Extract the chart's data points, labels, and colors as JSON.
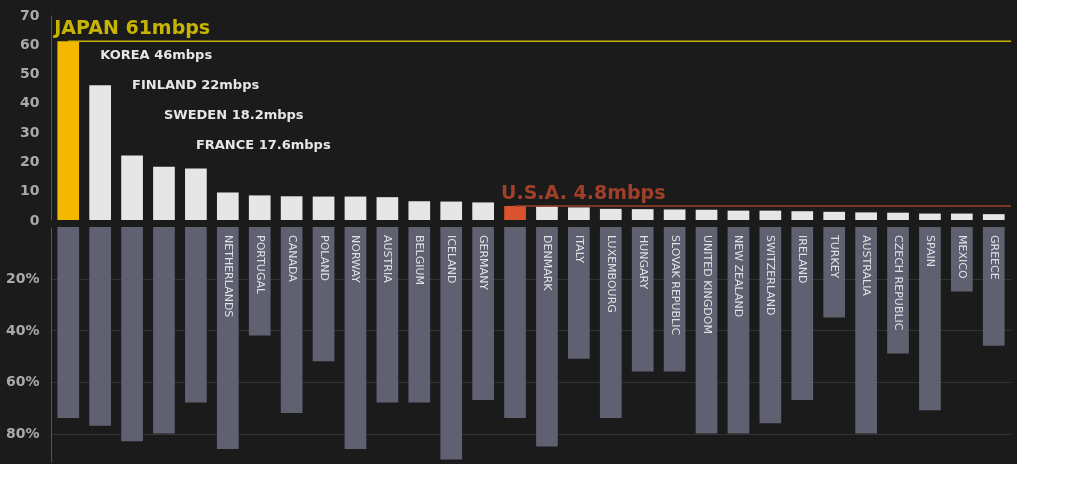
{
  "chart_data": [
    {
      "type": "bar",
      "values": [
        61,
        46,
        22,
        18.2,
        17.6,
        9.4,
        8.4,
        8.1,
        8,
        8,
        7.8,
        6.4,
        6.3,
        6,
        4.8,
        4.6,
        4.3,
        3.8,
        3.7,
        3.6,
        3.5,
        3.2,
        3.2,
        3.0,
        2.8,
        2.6,
        2.5,
        2.2,
        2.2,
        2.0
      ],
      "colors": [
        "#f5b800",
        "#e6e6e6",
        "#e6e6e6",
        "#e6e6e6",
        "#e6e6e6",
        "#e6e6e6",
        "#e6e6e6",
        "#e6e6e6",
        "#e6e6e6",
        "#e6e6e6",
        "#e6e6e6",
        "#e6e6e6",
        "#e6e6e6",
        "#e6e6e6",
        "#d9532c",
        "#e6e6e6",
        "#e6e6e6",
        "#e6e6e6",
        "#e6e6e6",
        "#e6e6e6",
        "#e6e6e6",
        "#e6e6e6",
        "#e6e6e6",
        "#e6e6e6",
        "#e6e6e6",
        "#e6e6e6",
        "#e6e6e6",
        "#e6e6e6",
        "#e6e6e6",
        "#e6e6e6"
      ],
      "ylim": [
        0,
        70
      ],
      "yticks": [
        0,
        10,
        20,
        30,
        40,
        50,
        60,
        70
      ],
      "tick_labels": "y",
      "grid": false,
      "ref_lines": [
        {
          "axis": "y",
          "value": 61,
          "label": "JAPAN 61mbps",
          "color": "#c8b400"
        },
        {
          "axis": "y",
          "value": 4.8,
          "label": "U.S.A. 4.8mbps",
          "color": "#a0402a"
        }
      ],
      "annotations": [
        "KOREA 46mbps",
        "FINLAND 22mbps",
        "SWEDEN 18.2mbps",
        "FRANCE 17.6mbps"
      ]
    },
    {
      "type": "bar",
      "categories": [
        null,
        null,
        null,
        null,
        null,
        "NETHERLANDS",
        "PORTUGAL",
        "CANADA",
        "POLAND",
        "NORWAY",
        "AUSTRIA",
        "BELGIUM",
        "ICELAND",
        "GERMANY",
        null,
        "DENMARK",
        "ITALY",
        "LUXEMBOURG",
        "HUNGARY",
        "SLOVAK REPUBLIC",
        "UNITED KINGDOM",
        "NEW ZEALAND",
        "SWITZERLAND",
        "IRELAND",
        "TURKEY",
        "AUSTRALIA",
        "CZECH REPUBLIC",
        "SPAIN",
        "MEXICO",
        "GREECE"
      ],
      "values": [
        74,
        77,
        83,
        80,
        68,
        86,
        42,
        72,
        52,
        86,
        68,
        68,
        90,
        67,
        74,
        85,
        51,
        74,
        56,
        56,
        80,
        80,
        76,
        67,
        35,
        80,
        49,
        71,
        25,
        46
      ],
      "color": "#5f6070",
      "ylim": [
        91,
        0
      ],
      "yticks": [
        {
          "value": 20,
          "label": "20%"
        },
        {
          "value": 40,
          "label": "40%"
        },
        {
          "value": 60,
          "label": "60%"
        },
        {
          "value": 80,
          "label": "80%"
        }
      ],
      "grid": "y"
    }
  ]
}
